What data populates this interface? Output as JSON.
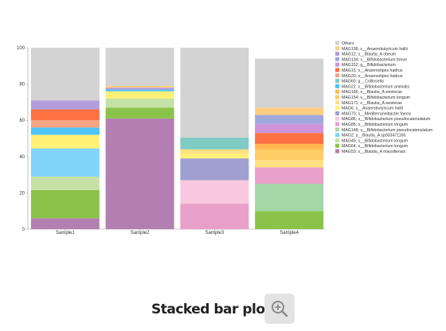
{
  "caption": {
    "title": "Stacked bar plot"
  },
  "icons": {
    "zoom": "zoom-in-icon"
  },
  "chart_data": {
    "type": "bar",
    "stacked": true,
    "categories": [
      "Sample1",
      "Sample2",
      "Sample3",
      "Sample4"
    ],
    "ylim": [
      0,
      100
    ],
    "yticks": [
      0,
      20,
      40,
      60,
      80,
      100
    ],
    "grid": false,
    "legend_position": "right",
    "series": [
      {
        "name": "MAG53; s__Blautia_A massiliensis",
        "color": "#b37fb0",
        "values": [
          6,
          61,
          0,
          0
        ]
      },
      {
        "name": "MAG64; s__Bifidobacterium longum",
        "color": "#8bc34a",
        "values": [
          15.5,
          6,
          0,
          10
        ]
      },
      {
        "name": "MAG45; s__Bifidobacterium longum",
        "color": "#c5e1a5",
        "values": [
          7.5,
          5,
          0,
          0
        ]
      },
      {
        "name": "MAG2; s__Blautia_A sp003471165",
        "color": "#81d4fa",
        "values": [
          15.5,
          0,
          0,
          0
        ]
      },
      {
        "name": "MAG148; s__Bifidobacterium pseudocatenulatum",
        "color": "#a5d6a7",
        "values": [
          0,
          0,
          0,
          15
        ]
      },
      {
        "name": "MAG85; s__Bifidobacterium longum",
        "color": "#e8a0c8",
        "values": [
          0,
          0,
          14,
          9
        ]
      },
      {
        "name": "MAG86; s__Bifidobacterium pseudocatenulatum",
        "color": "#f8c8e0",
        "values": [
          0,
          0,
          13,
          0
        ]
      },
      {
        "name": "MAG70; s__Mediterraneibacter faecis",
        "color": "#9fa0d0",
        "values": [
          0,
          0,
          12,
          0
        ]
      },
      {
        "name": "MAG6; s__Anaerobutyricum hallii",
        "color": "#fff176",
        "values": [
          7.5,
          4,
          2.5,
          0
        ]
      },
      {
        "name": "MAG171; s__Blautia_A wexlerae",
        "color": "#ffe082",
        "values": [
          0,
          0,
          2.5,
          4
        ]
      },
      {
        "name": "MAG154; s__Bifidobacterium longum",
        "color": "#ffcc66",
        "values": [
          0,
          0,
          0,
          6
        ]
      },
      {
        "name": "MAG166; s__Blautia_A wexlerae",
        "color": "#ffb74d",
        "values": [
          0,
          0,
          0,
          3
        ]
      },
      {
        "name": "MAG22; s__Bifidobacterium animalis",
        "color": "#4fc3f7",
        "values": [
          4,
          1,
          0,
          0
        ]
      },
      {
        "name": "MAG60; g__Collinsella",
        "color": "#80cbc4",
        "values": [
          0,
          0,
          6.5,
          0
        ]
      },
      {
        "name": "MAG20; s__Anaerostipes hadrus",
        "color": "#f4a582",
        "values": [
          4,
          0,
          0,
          0
        ]
      },
      {
        "name": "MAG15; s__Anaerostipes hadrus",
        "color": "#ff7043",
        "values": [
          6,
          0,
          0,
          6
        ]
      },
      {
        "name": "MAG152; g__Bifidobacterium",
        "color": "#ce93d8",
        "values": [
          0,
          0,
          0,
          5
        ]
      },
      {
        "name": "MAG134; s__Bifidobacterium breve",
        "color": "#9fa8da",
        "values": [
          0,
          0,
          0,
          5
        ]
      },
      {
        "name": "MAG12; s__Blautia_A obeum",
        "color": "#b39ddb",
        "values": [
          5,
          1,
          0,
          0
        ]
      },
      {
        "name": "MAG136; s__Anaerobutyricum hallii",
        "color": "#ffcc80",
        "values": [
          0,
          1,
          0,
          4
        ]
      },
      {
        "name": "Others",
        "color": "#d3d3d3",
        "values": [
          29,
          21,
          49.5,
          27
        ]
      }
    ]
  }
}
